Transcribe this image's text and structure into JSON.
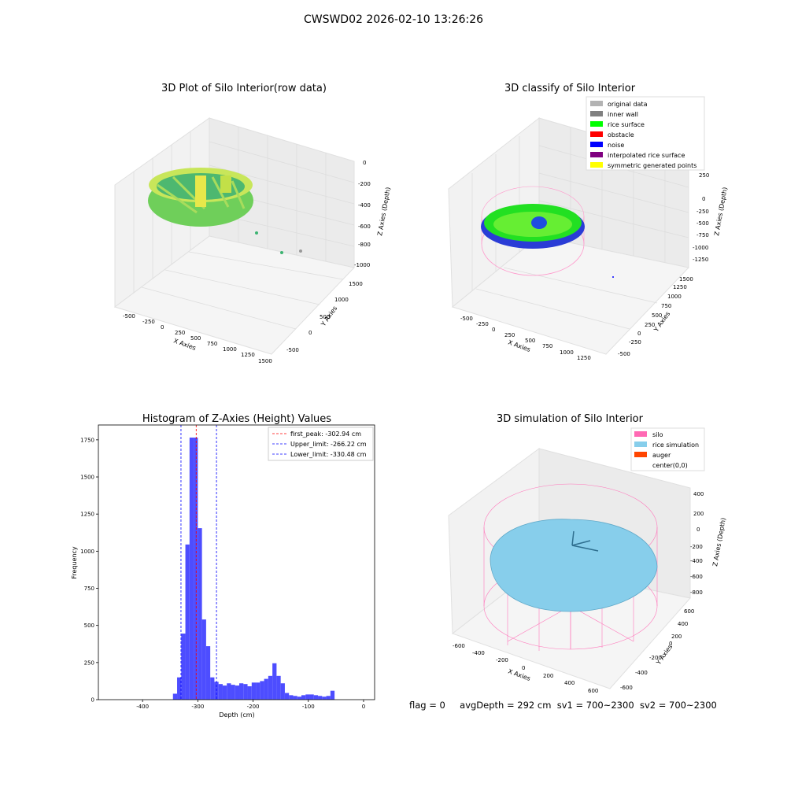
{
  "figure_title": "CWSWD02 2026-02-10 13:26:26",
  "footer": {
    "flag": "flag = 0",
    "avg_depth": "avgDepth = 292 cm",
    "sv1": "sv1 = 700~2300",
    "sv2": "sv2 = 700~2300"
  },
  "chart_data": [
    {
      "type": "scatter",
      "title": "3D Plot of Silo Interior(row data)",
      "xlabel": "X Axies",
      "ylabel": "Y Axies",
      "zlabel": "Z Axies (Depth)",
      "x_ticks": [
        "-500",
        "-250",
        "0",
        "250",
        "500",
        "750",
        "1000",
        "1250",
        "1500"
      ],
      "y_ticks": [
        "-500",
        "0",
        "500",
        "1000",
        "1500"
      ],
      "z_ticks": [
        "0",
        "-200",
        "-400",
        "-600",
        "-800",
        "-1000"
      ],
      "xlim": [
        -600,
        1500
      ],
      "ylim": [
        -600,
        1500
      ],
      "zlim": [
        -1000,
        0
      ]
    },
    {
      "type": "scatter",
      "title": "3D classify of Silo Interior",
      "xlabel": "X Axies",
      "ylabel": "Y Axies",
      "zlabel": "Z Axies (Depth)",
      "x_ticks": [
        "-500",
        "-250",
        "0",
        "250",
        "500",
        "750",
        "1000",
        "1250"
      ],
      "y_ticks": [
        "-500",
        "-250",
        "0",
        "250",
        "500",
        "750",
        "1000",
        "1250",
        "1500"
      ],
      "z_ticks": [
        "250",
        "0",
        "-250",
        "-500",
        "-750",
        "-1000",
        "-1250"
      ],
      "legend": [
        {
          "label": "original data",
          "color": "#b3b3b3"
        },
        {
          "label": "inner wall",
          "color": "#808080"
        },
        {
          "label": "rice surface",
          "color": "#00ff00"
        },
        {
          "label": "obstacle",
          "color": "#ff0000"
        },
        {
          "label": "noise",
          "color": "#0000ff"
        },
        {
          "label": "interpolated rice surface",
          "color": "#800080"
        },
        {
          "label": "symmetric generated points",
          "color": "#ffff00"
        }
      ]
    },
    {
      "type": "bar",
      "title": "Histogram of Z-Axies (Height) Values",
      "xlabel": "Depth (cm)",
      "ylabel": "Frequency",
      "xlim": [
        -480,
        20
      ],
      "ylim": [
        0,
        1850
      ],
      "x_ticks": [
        -400,
        -300,
        -200,
        -100,
        0
      ],
      "y_ticks": [
        0,
        250,
        500,
        750,
        1000,
        1250,
        1500,
        1750
      ],
      "bin_width": 7.5,
      "bins": [
        {
          "x0": -345,
          "value": 40
        },
        {
          "x0": -337.5,
          "value": 150
        },
        {
          "x0": -330,
          "value": 445
        },
        {
          "x0": -322.5,
          "value": 1045
        },
        {
          "x0": -315,
          "value": 1765
        },
        {
          "x0": -307.5,
          "value": 1765
        },
        {
          "x0": -300,
          "value": 1155
        },
        {
          "x0": -292.5,
          "value": 540
        },
        {
          "x0": -285,
          "value": 360
        },
        {
          "x0": -277.5,
          "value": 150
        },
        {
          "x0": -270,
          "value": 120
        },
        {
          "x0": -262.5,
          "value": 105
        },
        {
          "x0": -255,
          "value": 95
        },
        {
          "x0": -247.5,
          "value": 110
        },
        {
          "x0": -240,
          "value": 100
        },
        {
          "x0": -232.5,
          "value": 95
        },
        {
          "x0": -225,
          "value": 110
        },
        {
          "x0": -217.5,
          "value": 105
        },
        {
          "x0": -210,
          "value": 90
        },
        {
          "x0": -202.5,
          "value": 115
        },
        {
          "x0": -195,
          "value": 115
        },
        {
          "x0": -187.5,
          "value": 125
        },
        {
          "x0": -180,
          "value": 140
        },
        {
          "x0": -172.5,
          "value": 160
        },
        {
          "x0": -165,
          "value": 245
        },
        {
          "x0": -157.5,
          "value": 160
        },
        {
          "x0": -150,
          "value": 110
        },
        {
          "x0": -142.5,
          "value": 45
        },
        {
          "x0": -135,
          "value": 30
        },
        {
          "x0": -127.5,
          "value": 25
        },
        {
          "x0": -120,
          "value": 20
        },
        {
          "x0": -112.5,
          "value": 30
        },
        {
          "x0": -105,
          "value": 35
        },
        {
          "x0": -97.5,
          "value": 35
        },
        {
          "x0": -90,
          "value": 30
        },
        {
          "x0": -82.5,
          "value": 25
        },
        {
          "x0": -75,
          "value": 20
        },
        {
          "x0": -67.5,
          "value": 25
        },
        {
          "x0": -60,
          "value": 60
        }
      ],
      "vlines": [
        {
          "label": "first_peak: -302.94 cm",
          "x": -302.94,
          "color": "#ff0000"
        },
        {
          "label": "Upper_limit: -266.22 cm",
          "x": -266.22,
          "color": "#0000ff"
        },
        {
          "label": "Lower_limit: -330.48 cm",
          "x": -330.48,
          "color": "#0000ff"
        }
      ],
      "bar_color": "#4d4dff"
    },
    {
      "type": "area",
      "title": "3D simulation of Silo Interior",
      "xlabel": "X Axies",
      "ylabel": "Y Axies",
      "zlabel": "Z Axies (Depth)",
      "x_ticks": [
        "-600",
        "-400",
        "-200",
        "0",
        "200",
        "400",
        "600"
      ],
      "y_ticks": [
        "-600",
        "-400",
        "-200",
        "0",
        "200",
        "400",
        "600"
      ],
      "z_ticks": [
        "400",
        "200",
        "0",
        "-200",
        "-400",
        "-600",
        "-800"
      ],
      "legend": [
        {
          "label": "silo",
          "color": "#ff69b4"
        },
        {
          "label": "rice simulation",
          "color": "#87ceeb"
        },
        {
          "label": "auger",
          "color": "#ff4500"
        },
        {
          "label": "center(0,0)",
          "color": "#ffffff"
        }
      ]
    }
  ]
}
